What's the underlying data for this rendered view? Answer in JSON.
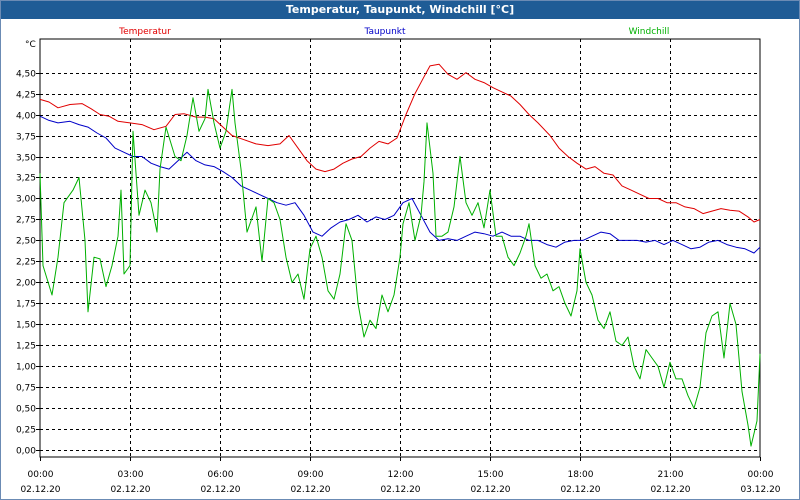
{
  "chart_data": {
    "type": "line",
    "title": "Temperatur, Taupunkt, Windchill [°C]",
    "ylabel": "°C",
    "ylim": [
      -0.08,
      4.9
    ],
    "yticks": [
      "0,00",
      "0,25",
      "0,50",
      "0,75",
      "1,00",
      "1,25",
      "1,50",
      "1,75",
      "2,00",
      "2,25",
      "2,50",
      "2,75",
      "3,00",
      "3,25",
      "3,50",
      "3,75",
      "4,00",
      "4,25",
      "4,50"
    ],
    "xlim": [
      0,
      24
    ],
    "xticks": [
      {
        "hour": 0,
        "time": "00:00",
        "date": "02.12.20"
      },
      {
        "hour": 3,
        "time": "03:00",
        "date": "02.12.20"
      },
      {
        "hour": 6,
        "time": "06:00",
        "date": "02.12.20"
      },
      {
        "hour": 9,
        "time": "09:00",
        "date": "02.12.20"
      },
      {
        "hour": 12,
        "time": "12:00",
        "date": "02.12.20"
      },
      {
        "hour": 15,
        "time": "15:00",
        "date": "02.12.20"
      },
      {
        "hour": 18,
        "time": "18:00",
        "date": "02.12.20"
      },
      {
        "hour": 21,
        "time": "21:00",
        "date": "02.12.20"
      },
      {
        "hour": 24,
        "time": "00:00",
        "date": "03.12.20"
      }
    ],
    "series": [
      {
        "name": "Temperatur",
        "color": "#e00000",
        "legend_x_hour": 3.5,
        "points": [
          [
            0,
            4.18
          ],
          [
            0.3,
            4.15
          ],
          [
            0.6,
            4.08
          ],
          [
            1,
            4.12
          ],
          [
            1.4,
            4.13
          ],
          [
            1.7,
            4.07
          ],
          [
            2,
            4.0
          ],
          [
            2.3,
            3.98
          ],
          [
            2.6,
            3.92
          ],
          [
            3,
            3.9
          ],
          [
            3.4,
            3.88
          ],
          [
            3.8,
            3.82
          ],
          [
            4.2,
            3.86
          ],
          [
            4.5,
            4.0
          ],
          [
            4.8,
            4.01
          ],
          [
            5.2,
            3.97
          ],
          [
            5.5,
            3.97
          ],
          [
            5.8,
            3.95
          ],
          [
            6.1,
            3.85
          ],
          [
            6.4,
            3.75
          ],
          [
            6.8,
            3.7
          ],
          [
            7.2,
            3.65
          ],
          [
            7.6,
            3.63
          ],
          [
            8,
            3.65
          ],
          [
            8.3,
            3.75
          ],
          [
            8.6,
            3.6
          ],
          [
            8.9,
            3.45
          ],
          [
            9.2,
            3.35
          ],
          [
            9.5,
            3.32
          ],
          [
            9.8,
            3.35
          ],
          [
            10.1,
            3.42
          ],
          [
            10.4,
            3.47
          ],
          [
            10.7,
            3.5
          ],
          [
            11,
            3.6
          ],
          [
            11.3,
            3.68
          ],
          [
            11.6,
            3.65
          ],
          [
            11.9,
            3.72
          ],
          [
            12.2,
            4.0
          ],
          [
            12.5,
            4.25
          ],
          [
            12.8,
            4.45
          ],
          [
            13,
            4.58
          ],
          [
            13.3,
            4.6
          ],
          [
            13.6,
            4.48
          ],
          [
            13.9,
            4.42
          ],
          [
            14.2,
            4.5
          ],
          [
            14.5,
            4.42
          ],
          [
            14.8,
            4.38
          ],
          [
            15.1,
            4.32
          ],
          [
            15.4,
            4.27
          ],
          [
            15.7,
            4.22
          ],
          [
            16,
            4.12
          ],
          [
            16.3,
            4.0
          ],
          [
            16.6,
            3.9
          ],
          [
            17,
            3.75
          ],
          [
            17.3,
            3.6
          ],
          [
            17.6,
            3.5
          ],
          [
            17.9,
            3.42
          ],
          [
            18.2,
            3.35
          ],
          [
            18.5,
            3.38
          ],
          [
            18.8,
            3.3
          ],
          [
            19.1,
            3.28
          ],
          [
            19.4,
            3.15
          ],
          [
            19.7,
            3.1
          ],
          [
            20,
            3.05
          ],
          [
            20.3,
            3.0
          ],
          [
            20.6,
            3.0
          ],
          [
            20.9,
            2.95
          ],
          [
            21.2,
            2.95
          ],
          [
            21.5,
            2.9
          ],
          [
            21.8,
            2.88
          ],
          [
            22.1,
            2.82
          ],
          [
            22.4,
            2.85
          ],
          [
            22.7,
            2.88
          ],
          [
            23,
            2.86
          ],
          [
            23.3,
            2.85
          ],
          [
            23.6,
            2.78
          ],
          [
            23.8,
            2.72
          ],
          [
            24,
            2.75
          ]
        ]
      },
      {
        "name": "Taupunkt",
        "color": "#0000c8",
        "legend_x_hour": 11.5,
        "points": [
          [
            0,
            3.98
          ],
          [
            0.3,
            3.93
          ],
          [
            0.6,
            3.9
          ],
          [
            1,
            3.92
          ],
          [
            1.3,
            3.88
          ],
          [
            1.6,
            3.85
          ],
          [
            1.9,
            3.78
          ],
          [
            2.2,
            3.72
          ],
          [
            2.5,
            3.6
          ],
          [
            2.8,
            3.55
          ],
          [
            3.1,
            3.5
          ],
          [
            3.4,
            3.5
          ],
          [
            3.7,
            3.42
          ],
          [
            4,
            3.38
          ],
          [
            4.3,
            3.35
          ],
          [
            4.6,
            3.45
          ],
          [
            4.9,
            3.55
          ],
          [
            5.2,
            3.45
          ],
          [
            5.5,
            3.4
          ],
          [
            5.8,
            3.38
          ],
          [
            6.1,
            3.32
          ],
          [
            6.4,
            3.25
          ],
          [
            6.7,
            3.15
          ],
          [
            7,
            3.1
          ],
          [
            7.3,
            3.05
          ],
          [
            7.6,
            3.0
          ],
          [
            7.9,
            2.95
          ],
          [
            8.2,
            2.92
          ],
          [
            8.5,
            2.95
          ],
          [
            8.8,
            2.8
          ],
          [
            9.1,
            2.6
          ],
          [
            9.4,
            2.55
          ],
          [
            9.7,
            2.65
          ],
          [
            10,
            2.72
          ],
          [
            10.3,
            2.75
          ],
          [
            10.6,
            2.8
          ],
          [
            10.9,
            2.72
          ],
          [
            11.2,
            2.78
          ],
          [
            11.5,
            2.75
          ],
          [
            11.8,
            2.8
          ],
          [
            12.1,
            2.95
          ],
          [
            12.4,
            3.0
          ],
          [
            12.7,
            2.8
          ],
          [
            13,
            2.6
          ],
          [
            13.3,
            2.5
          ],
          [
            13.6,
            2.52
          ],
          [
            13.9,
            2.5
          ],
          [
            14.2,
            2.55
          ],
          [
            14.5,
            2.6
          ],
          [
            14.8,
            2.58
          ],
          [
            15.1,
            2.55
          ],
          [
            15.4,
            2.6
          ],
          [
            15.7,
            2.55
          ],
          [
            16,
            2.55
          ],
          [
            16.3,
            2.5
          ],
          [
            16.6,
            2.5
          ],
          [
            16.9,
            2.45
          ],
          [
            17.2,
            2.42
          ],
          [
            17.5,
            2.48
          ],
          [
            17.8,
            2.5
          ],
          [
            18.1,
            2.5
          ],
          [
            18.4,
            2.55
          ],
          [
            18.7,
            2.6
          ],
          [
            19,
            2.58
          ],
          [
            19.3,
            2.5
          ],
          [
            19.6,
            2.5
          ],
          [
            19.9,
            2.5
          ],
          [
            20.2,
            2.48
          ],
          [
            20.5,
            2.5
          ],
          [
            20.8,
            2.45
          ],
          [
            21.1,
            2.5
          ],
          [
            21.4,
            2.45
          ],
          [
            21.7,
            2.4
          ],
          [
            22,
            2.42
          ],
          [
            22.3,
            2.48
          ],
          [
            22.6,
            2.5
          ],
          [
            22.9,
            2.45
          ],
          [
            23.2,
            2.42
          ],
          [
            23.5,
            2.4
          ],
          [
            23.8,
            2.35
          ],
          [
            24,
            2.42
          ]
        ]
      },
      {
        "name": "Windchill",
        "color": "#00b000",
        "legend_x_hour": 20.3,
        "points": [
          [
            0,
            3.3
          ],
          [
            0.1,
            2.2
          ],
          [
            0.4,
            1.85
          ],
          [
            0.6,
            2.3
          ],
          [
            0.8,
            2.95
          ],
          [
            1.1,
            3.1
          ],
          [
            1.3,
            3.25
          ],
          [
            1.5,
            2.5
          ],
          [
            1.6,
            1.65
          ],
          [
            1.8,
            2.3
          ],
          [
            2,
            2.28
          ],
          [
            2.2,
            1.95
          ],
          [
            2.4,
            2.2
          ],
          [
            2.6,
            2.55
          ],
          [
            2.7,
            3.1
          ],
          [
            2.8,
            2.1
          ],
          [
            3,
            2.2
          ],
          [
            3.1,
            3.8
          ],
          [
            3.3,
            2.8
          ],
          [
            3.5,
            3.1
          ],
          [
            3.7,
            2.95
          ],
          [
            3.9,
            2.6
          ],
          [
            4,
            3.35
          ],
          [
            4.2,
            3.85
          ],
          [
            4.5,
            3.5
          ],
          [
            4.7,
            3.45
          ],
          [
            4.9,
            3.75
          ],
          [
            5.1,
            4.2
          ],
          [
            5.3,
            3.8
          ],
          [
            5.5,
            3.95
          ],
          [
            5.6,
            4.3
          ],
          [
            5.8,
            3.9
          ],
          [
            6,
            3.6
          ],
          [
            6.2,
            3.8
          ],
          [
            6.4,
            4.3
          ],
          [
            6.5,
            3.9
          ],
          [
            6.7,
            3.35
          ],
          [
            6.9,
            2.6
          ],
          [
            7.2,
            2.9
          ],
          [
            7.4,
            2.25
          ],
          [
            7.6,
            3.0
          ],
          [
            7.8,
            2.95
          ],
          [
            8,
            2.75
          ],
          [
            8.2,
            2.3
          ],
          [
            8.4,
            2.0
          ],
          [
            8.6,
            2.1
          ],
          [
            8.8,
            1.8
          ],
          [
            9,
            2.4
          ],
          [
            9.2,
            2.55
          ],
          [
            9.4,
            2.3
          ],
          [
            9.6,
            1.9
          ],
          [
            9.8,
            1.8
          ],
          [
            10,
            2.1
          ],
          [
            10.2,
            2.7
          ],
          [
            10.4,
            2.5
          ],
          [
            10.6,
            1.75
          ],
          [
            10.8,
            1.35
          ],
          [
            11,
            1.55
          ],
          [
            11.2,
            1.45
          ],
          [
            11.4,
            1.85
          ],
          [
            11.6,
            1.65
          ],
          [
            11.8,
            1.85
          ],
          [
            12,
            2.3
          ],
          [
            12.1,
            2.7
          ],
          [
            12.3,
            2.95
          ],
          [
            12.5,
            2.5
          ],
          [
            12.7,
            2.8
          ],
          [
            12.8,
            3.2
          ],
          [
            12.9,
            3.9
          ],
          [
            13.1,
            3.3
          ],
          [
            13.2,
            2.55
          ],
          [
            13.4,
            2.55
          ],
          [
            13.6,
            2.6
          ],
          [
            13.8,
            2.9
          ],
          [
            14,
            3.5
          ],
          [
            14.2,
            2.95
          ],
          [
            14.4,
            2.8
          ],
          [
            14.6,
            2.95
          ],
          [
            14.8,
            2.65
          ],
          [
            15,
            3.1
          ],
          [
            15.2,
            2.55
          ],
          [
            15.4,
            2.55
          ],
          [
            15.6,
            2.3
          ],
          [
            15.8,
            2.2
          ],
          [
            16,
            2.35
          ],
          [
            16.2,
            2.55
          ],
          [
            16.3,
            2.7
          ],
          [
            16.5,
            2.2
          ],
          [
            16.7,
            2.05
          ],
          [
            16.9,
            2.1
          ],
          [
            17.1,
            1.9
          ],
          [
            17.3,
            1.95
          ],
          [
            17.5,
            1.75
          ],
          [
            17.7,
            1.6
          ],
          [
            17.9,
            1.9
          ],
          [
            18,
            2.4
          ],
          [
            18.2,
            2.0
          ],
          [
            18.4,
            1.85
          ],
          [
            18.6,
            1.55
          ],
          [
            18.8,
            1.45
          ],
          [
            19,
            1.65
          ],
          [
            19.2,
            1.3
          ],
          [
            19.4,
            1.25
          ],
          [
            19.6,
            1.35
          ],
          [
            19.8,
            1.0
          ],
          [
            20,
            0.85
          ],
          [
            20.2,
            1.2
          ],
          [
            20.4,
            1.1
          ],
          [
            20.6,
            1.0
          ],
          [
            20.8,
            0.75
          ],
          [
            21,
            1.05
          ],
          [
            21.2,
            0.85
          ],
          [
            21.4,
            0.85
          ],
          [
            21.6,
            0.65
          ],
          [
            21.8,
            0.5
          ],
          [
            22,
            0.75
          ],
          [
            22.2,
            1.4
          ],
          [
            22.4,
            1.6
          ],
          [
            22.6,
            1.65
          ],
          [
            22.8,
            1.1
          ],
          [
            23,
            1.75
          ],
          [
            23.2,
            1.5
          ],
          [
            23.4,
            0.7
          ],
          [
            23.6,
            0.3
          ],
          [
            23.7,
            0.05
          ],
          [
            23.9,
            0.35
          ],
          [
            24,
            1.15
          ]
        ]
      }
    ]
  }
}
